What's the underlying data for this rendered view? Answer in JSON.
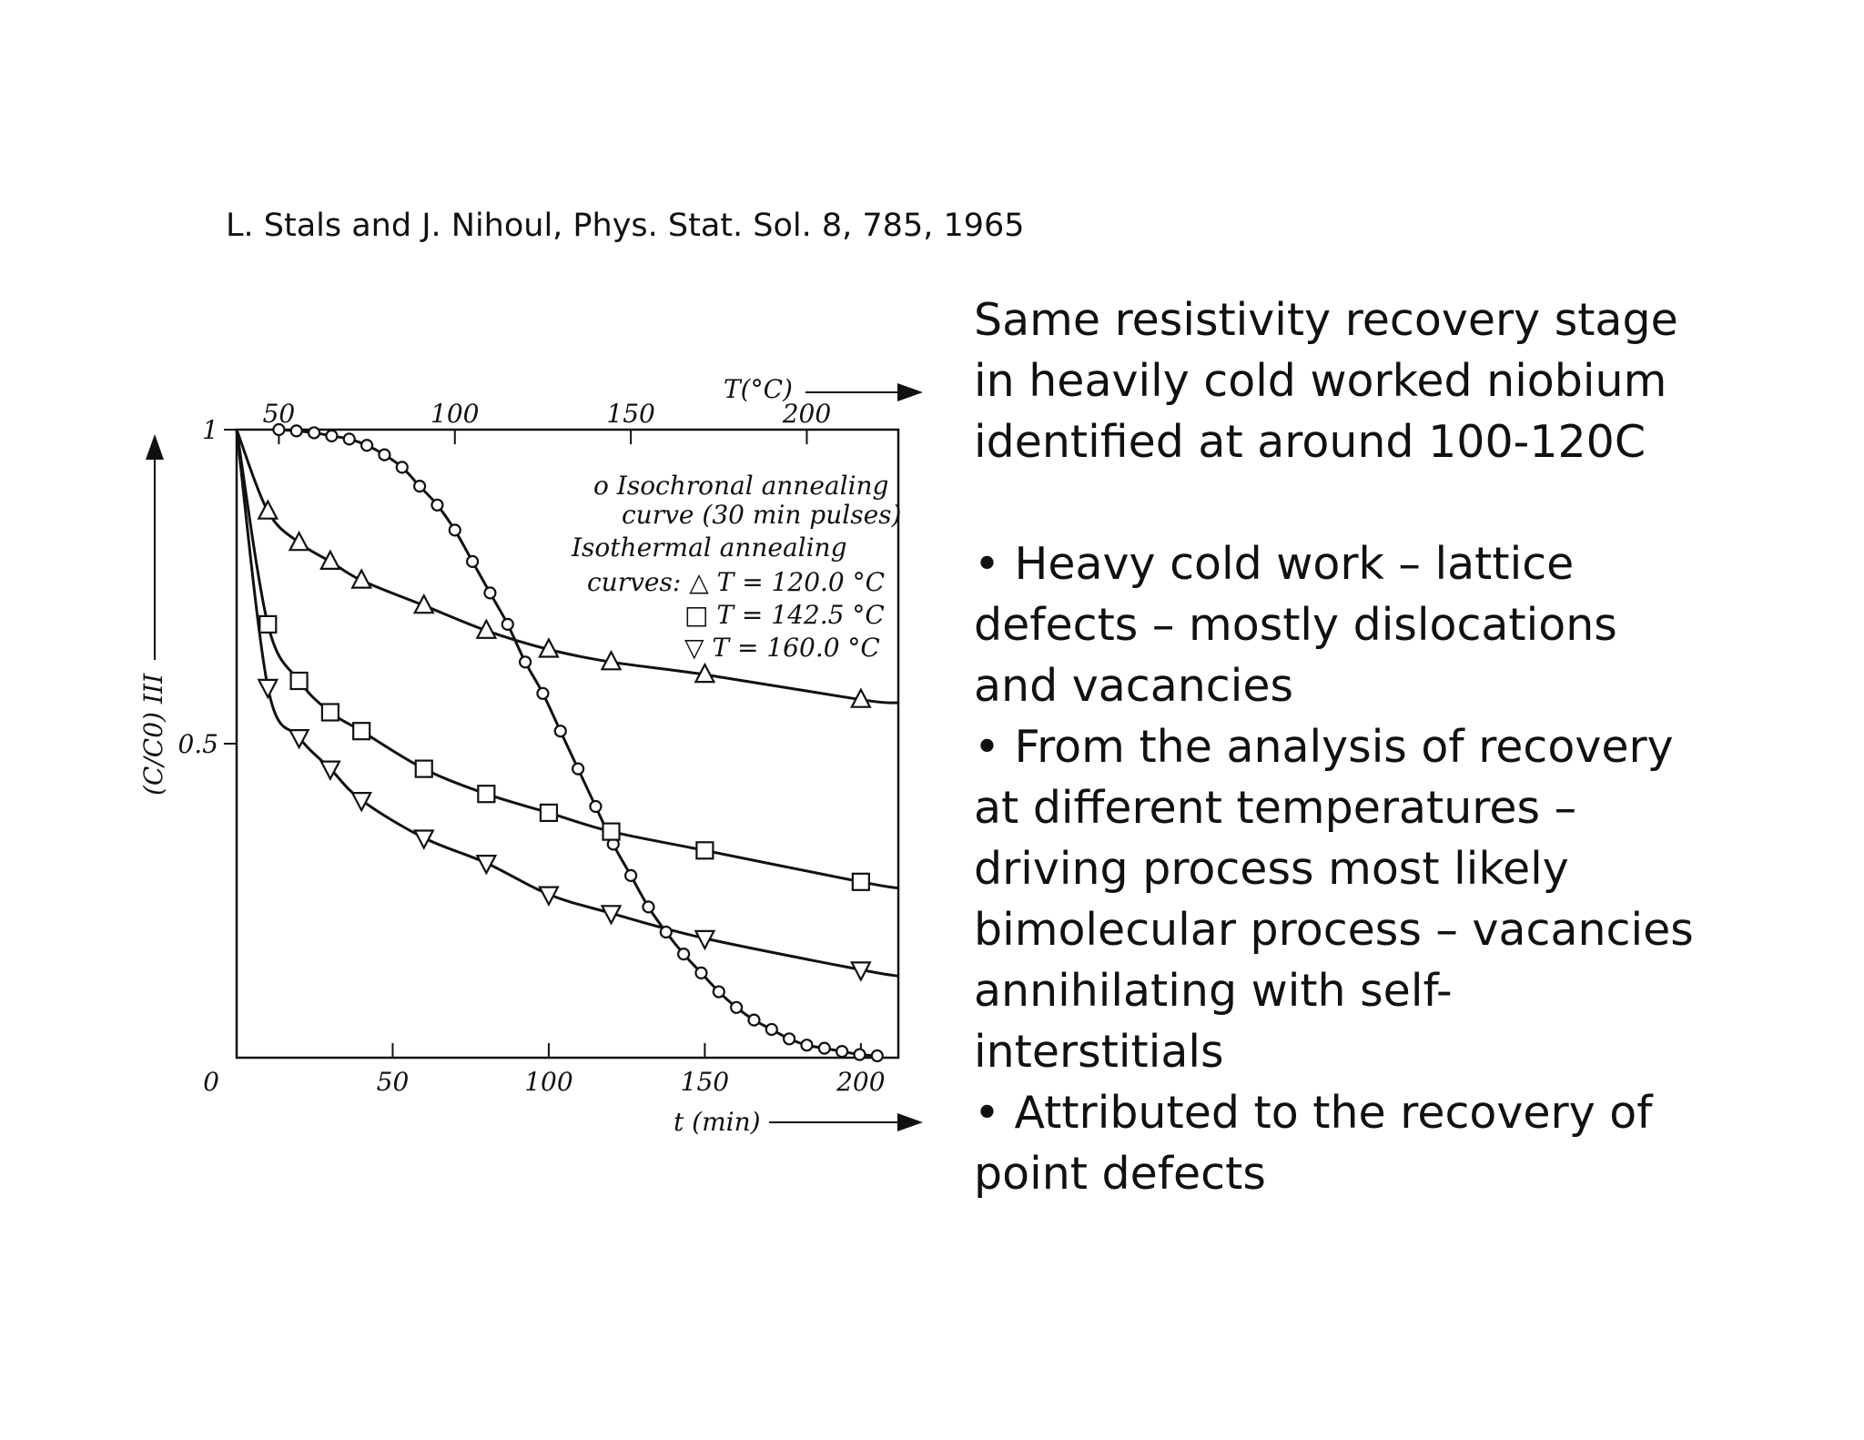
{
  "slide": {
    "citation": "L. Stals and J. Nihoul, Phys. Stat. Sol. 8, 785, 1965",
    "heading": [
      "Same resistivity recovery stage",
      "in heavily cold worked niobium",
      "identified at around 100-120C"
    ],
    "bullets": [
      [
        "• Heavy cold work – lattice",
        "defects – mostly dislocations",
        "and vacancies"
      ],
      [
        "• From the analysis of recovery",
        "at different temperatures –",
        "driving process most likely",
        "bimolecular process – vacancies",
        "annihilating with self-",
        "interstitials"
      ],
      [
        "• Attributed to the recovery of",
        "point defects"
      ]
    ]
  },
  "chart_data": {
    "type": "line",
    "xlabel": "t (min)",
    "x2label": "T(°C)",
    "ylabel": "(C/C0) III",
    "xlim": [
      0,
      212
    ],
    "ylim": [
      0,
      1
    ],
    "x_ticks": [
      50,
      100,
      150,
      200
    ],
    "x_tick_labels": [
      "50",
      "100",
      "150",
      "200"
    ],
    "x_origin_label": "0",
    "x2_ticks": [
      50,
      100,
      150,
      200
    ],
    "x2_tick_labels": [
      "50",
      "100",
      "150",
      "200"
    ],
    "x2lim": [
      38,
      226
    ],
    "y_ticks": [
      0,
      0.5,
      1
    ],
    "y_tick_labels": [
      "0",
      "0.5",
      "1"
    ],
    "legend": {
      "position": "top-right",
      "lines": [
        "o Isochronal annealing",
        "curve (30 min pulses)",
        "Isothermal annealing",
        "curves: △ T = 120.0 °C",
        "□ T = 142.5 °C",
        "▽ T = 160.0 °C"
      ]
    },
    "series": [
      {
        "name": "Isochronal annealing curve (30 min pulses)",
        "axis": "T",
        "marker": "circle",
        "x": [
          50,
          55,
          60,
          65,
          70,
          75,
          80,
          85,
          90,
          95,
          100,
          105,
          110,
          115,
          120,
          125,
          130,
          135,
          140,
          145,
          150,
          155,
          160,
          165,
          170,
          175,
          180,
          185,
          190,
          195,
          200,
          205,
          210,
          215,
          220
        ],
        "y": [
          1.0,
          0.998,
          0.995,
          0.99,
          0.985,
          0.975,
          0.96,
          0.94,
          0.91,
          0.88,
          0.84,
          0.79,
          0.74,
          0.69,
          0.63,
          0.58,
          0.52,
          0.46,
          0.4,
          0.34,
          0.29,
          0.24,
          0.2,
          0.165,
          0.135,
          0.105,
          0.08,
          0.06,
          0.045,
          0.03,
          0.02,
          0.015,
          0.01,
          0.005,
          0.003
        ]
      },
      {
        "name": "T = 120.0 °C",
        "axis": "t",
        "marker": "triangle-up",
        "x": [
          0,
          10,
          20,
          30,
          40,
          60,
          80,
          100,
          120,
          150,
          200,
          212
        ],
        "y": [
          1.0,
          0.87,
          0.82,
          0.79,
          0.76,
          0.72,
          0.68,
          0.65,
          0.63,
          0.61,
          0.57,
          0.565
        ]
      },
      {
        "name": "T = 142.5 °C",
        "axis": "t",
        "marker": "square",
        "x": [
          0,
          10,
          20,
          30,
          40,
          60,
          80,
          100,
          120,
          150,
          200,
          212
        ],
        "y": [
          1.0,
          0.69,
          0.6,
          0.55,
          0.52,
          0.46,
          0.42,
          0.39,
          0.36,
          0.33,
          0.28,
          0.27
        ]
      },
      {
        "name": "T = 160.0 °C",
        "axis": "t",
        "marker": "triangle-down",
        "x": [
          0,
          10,
          20,
          30,
          40,
          60,
          80,
          100,
          120,
          150,
          200,
          212
        ],
        "y": [
          1.0,
          0.59,
          0.51,
          0.46,
          0.41,
          0.35,
          0.31,
          0.26,
          0.23,
          0.19,
          0.14,
          0.13
        ]
      }
    ]
  }
}
